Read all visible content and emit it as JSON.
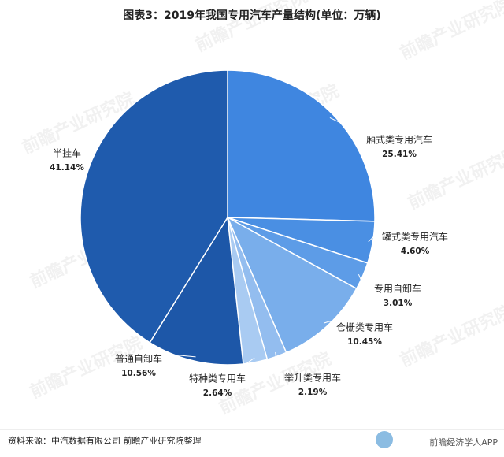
{
  "chart_data": {
    "type": "pie",
    "title": "图表3：2019年我国专用汽车产量结构(单位：万辆)",
    "categories": [
      "厢式类专用汽车",
      "罐式类专用汽车",
      "专用自卸车",
      "仓栅类专用车",
      "举升类专用车",
      "特种类专用车",
      "普通自卸车",
      "半挂车"
    ],
    "values": [
      25.41,
      4.6,
      3.01,
      10.45,
      2.19,
      2.64,
      10.56,
      41.14
    ],
    "value_labels": [
      "25.41%",
      "4.60%",
      "3.01%",
      "10.45%",
      "2.19%",
      "2.64%",
      "10.56%",
      "41.14%"
    ],
    "colors": [
      "#3f86e0",
      "#4a8fe3",
      "#5d9ce7",
      "#79aeeb",
      "#93bdef",
      "#a9cbf2",
      "#1d57a8",
      "#1f5bad"
    ],
    "source": "资料来源：中汽数据有限公司 前瞻产业研究院整理",
    "watermark": "前瞻产业研究院",
    "brand": "前瞻经济学人APP"
  }
}
